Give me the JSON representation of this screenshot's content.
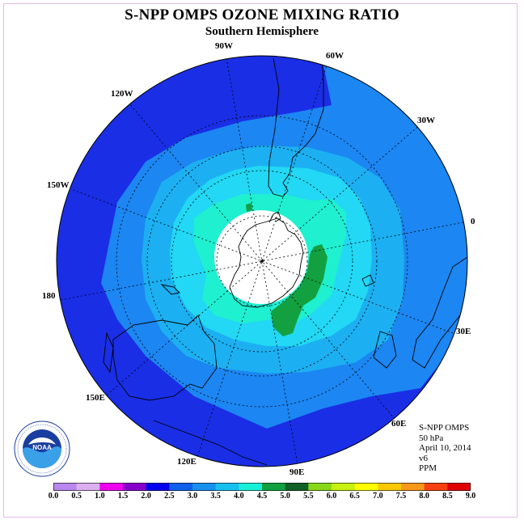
{
  "title": "S-NPP OMPS OZONE MIXING RATIO",
  "subtitle": "Southern Hemisphere",
  "longitude_labels": {
    "w90": "90W",
    "w60": "60W",
    "w30": "30W",
    "e0": "0",
    "e30": "30E",
    "e60": "60E",
    "e90": "90E",
    "e120": "120E",
    "e150": "150E",
    "e180": "180",
    "w150": "150W",
    "w120": "120W"
  },
  "info": {
    "instrument": "S-NPP OMPS",
    "pressure": "50 hPa",
    "date": "April 10, 2014",
    "version": "v6",
    "units": "PPM"
  },
  "logo": {
    "text": "NOAA",
    "ring_text": "NATIONAL OCEANIC AND ATMOSPHERIC ADMINISTRATION",
    "ring_text_bottom": "U.S. DEPARTMENT OF COMMERCE"
  },
  "colorbar": {
    "ticks": [
      "0.0",
      "0.5",
      "1.0",
      "1.5",
      "2.0",
      "2.5",
      "3.0",
      "3.5",
      "4.0",
      "4.5",
      "5.0",
      "5.5",
      "6.0",
      "6.5",
      "7.0",
      "7.5",
      "8.0",
      "8.5",
      "9.0"
    ],
    "colors": [
      "#b888ee",
      "#dcb0f0",
      "#ee00ee",
      "#8800cc",
      "#0000ee",
      "#1060ee",
      "#1890ee",
      "#18c0f0",
      "#18f0d8",
      "#10a040",
      "#106028",
      "#88d818",
      "#c8f010",
      "#ffff00",
      "#f8c800",
      "#f89818",
      "#f84010",
      "#e00000",
      "#886048"
    ]
  },
  "map_colors": {
    "below_2_5": "#1a2ee6",
    "2_5_to_3_0": "#1c86f2",
    "3_0_to_3_5": "#1cb0f2",
    "3_5_to_4_0": "#22d8f4",
    "4_0_to_4_5": "#1ef0d0",
    "4_5_to_5_0": "#13a040",
    "5_0_to_5_5": "#0f6a2c",
    "polar_night": "#ffffff"
  }
}
